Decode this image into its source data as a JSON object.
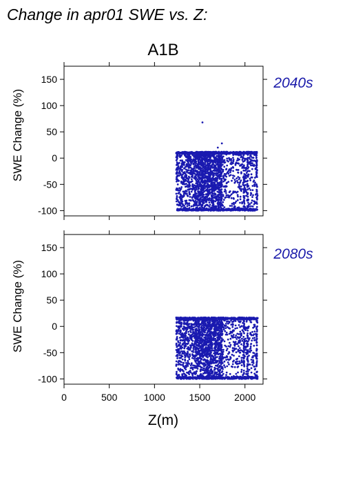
{
  "title": "Change in apr01 SWE vs. Z:",
  "scenario": "A1B",
  "colors": {
    "points": "#1a1ab0",
    "period_label": "#1a1aaa"
  },
  "chart_data": [
    {
      "type": "scatter",
      "period": "2040s",
      "ylabel": "SWE Change (%)",
      "xlabel": "",
      "xlim": [
        0,
        2200
      ],
      "ylim": [
        -110,
        175
      ],
      "x_ticks": [
        "0",
        "500",
        "1000",
        "1500",
        "2000"
      ],
      "y_ticks": [
        "-100",
        "-50",
        "0",
        "50",
        "100",
        "150"
      ],
      "grid": false,
      "cloud": {
        "x_range": [
          1240,
          2140
        ],
        "y_range": [
          -100,
          12
        ],
        "dense_core": [
          1450,
          1750
        ]
      },
      "outliers": [
        {
          "x": 1530,
          "y": 68
        },
        {
          "x": 1745,
          "y": 28
        },
        {
          "x": 1700,
          "y": 20
        }
      ]
    },
    {
      "type": "scatter",
      "period": "2080s",
      "ylabel": "SWE Change (%)",
      "xlabel": "Z(m)",
      "xlim": [
        0,
        2200
      ],
      "ylim": [
        -110,
        175
      ],
      "x_ticks": [
        "0",
        "500",
        "1000",
        "1500",
        "2000"
      ],
      "y_ticks": [
        "-100",
        "-50",
        "0",
        "50",
        "100",
        "150"
      ],
      "grid": false,
      "cloud": {
        "x_range": [
          1240,
          2140
        ],
        "y_range": [
          -100,
          17
        ],
        "dense_core": [
          1450,
          1750
        ]
      },
      "outliers": []
    }
  ]
}
